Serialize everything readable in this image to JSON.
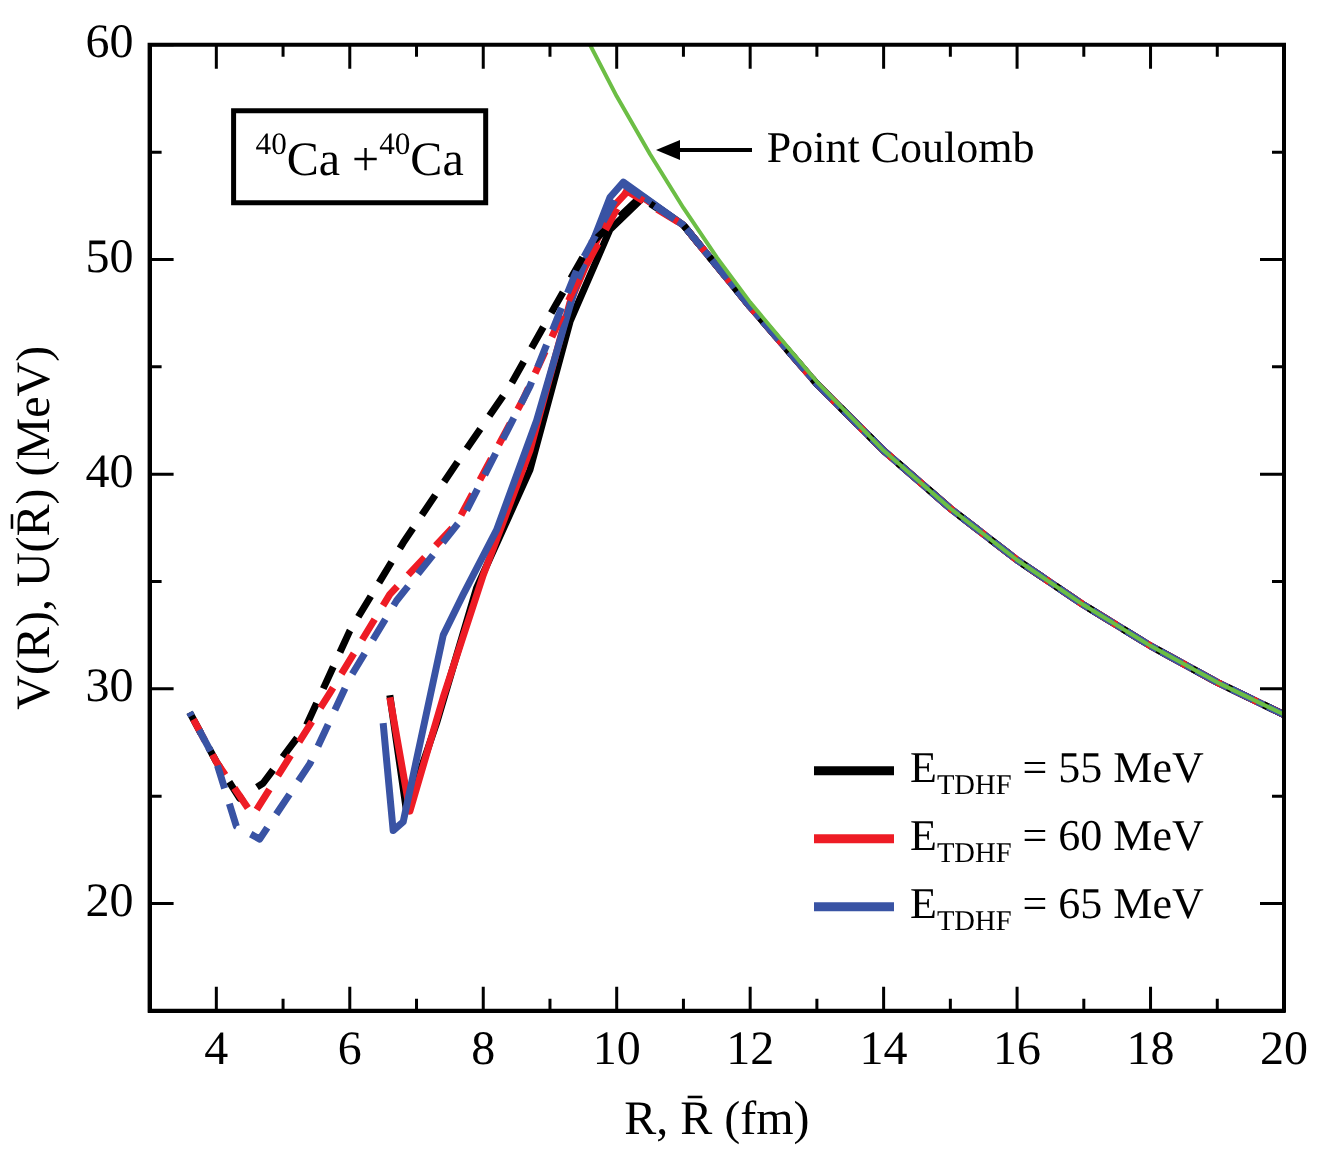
{
  "chart_data": {
    "type": "line",
    "xlabel": "R, R̄ (fm)",
    "ylabel": "V(R), U(R̄) (MeV)",
    "xlim": [
      3,
      20
    ],
    "ylim": [
      15,
      60
    ],
    "xticks": [
      4,
      {
        "value": 5,
        "label": null
      },
      6,
      {
        "value": 7,
        "label": null
      },
      8,
      {
        "value": 9,
        "label": null
      },
      10,
      {
        "value": 11,
        "label": null
      },
      12,
      {
        "value": 13,
        "label": null
      },
      14,
      {
        "value": 15,
        "label": null
      },
      16,
      {
        "value": 17,
        "label": null
      },
      18,
      {
        "value": 19,
        "label": null
      },
      20
    ],
    "yticks": [
      20,
      {
        "value": 25,
        "label": null
      },
      30,
      {
        "value": 35,
        "label": null
      },
      40,
      {
        "value": 45,
        "label": null
      },
      50,
      {
        "value": 55,
        "label": null
      },
      60
    ],
    "grid": false,
    "legend": "bottom right",
    "marker": "none",
    "annotations": [
      "$^{40}$Ca +$^{40}$Ca",
      {
        "text": "Point Coulomb",
        "x": 10.6,
        "y": 55.1
      }
    ],
    "series": [
      {
        "color": "#6cbe45",
        "line_style": "solid",
        "x": [
          9.6,
          10,
          10.5,
          11,
          11.5,
          12,
          13,
          14,
          15,
          16,
          17,
          18,
          19,
          20
        ],
        "values": [
          60,
          57.6,
          54.9,
          52.4,
          50.1,
          48,
          44.3,
          41.1,
          38.4,
          36,
          33.9,
          32,
          30.3,
          28.8
        ]
      },
      {
        "name": "E$_{TDHF}$ = 55 MeV",
        "color": "#000000",
        "line_style": "solid",
        "x": [
          6.6,
          6.85,
          7.3,
          7.9,
          8.7,
          9.3,
          9.9,
          10.4,
          11,
          11.5,
          12,
          13,
          14,
          15,
          16,
          17,
          18,
          19,
          20
        ],
        "values": [
          29.7,
          24.3,
          28.4,
          34.7,
          40.2,
          47.1,
          51.4,
          52.9,
          51.6,
          49.7,
          47.8,
          44.2,
          41.1,
          38.4,
          36,
          33.9,
          32,
          30.3,
          28.8
        ]
      },
      {
        "name": "E$_{TDHF}$ = 60 MeV",
        "color": "#ee1c25",
        "line_style": "solid",
        "x": [
          6.6,
          6.9,
          7.4,
          8,
          8.7,
          9.3,
          9.9,
          10.2,
          11,
          11.5,
          12,
          13,
          14,
          15,
          16,
          17,
          18,
          19,
          20
        ],
        "values": [
          29.6,
          24.3,
          29.6,
          35.3,
          41.1,
          48,
          52.3,
          53.3,
          51.6,
          49.7,
          47.8,
          44.2,
          41.1,
          38.4,
          36,
          33.9,
          32,
          30.3,
          28.8
        ]
      },
      {
        "name": "E$_{TDHF}$ = 65 MeV",
        "color": "#3953a4",
        "line_style": "solid",
        "x": [
          6.5,
          6.65,
          6.8,
          7.4,
          7.7,
          8.2,
          8.8,
          9.4,
          9.9,
          10.1,
          11,
          11.5,
          12,
          13,
          14,
          15,
          16,
          17,
          18,
          19,
          20
        ],
        "values": [
          28.4,
          23.4,
          23.8,
          32.5,
          34.4,
          37.4,
          42.5,
          48.9,
          52.9,
          53.6,
          51.6,
          49.7,
          47.8,
          44.2,
          41.1,
          38.4,
          36,
          33.9,
          32,
          30.3,
          28.8
        ]
      },
      {
        "color": "#000000",
        "line_style": "dashed",
        "x": [
          3.6,
          4,
          4.35,
          4.7,
          5.35,
          6,
          6.8,
          7.6,
          8.4,
          9,
          9.6,
          10.35,
          11,
          11.5,
          12,
          13,
          14,
          15,
          16,
          17,
          18,
          19,
          20
        ],
        "values": [
          28.9,
          26.6,
          24.9,
          25.6,
          28.3,
          32.7,
          36.8,
          40.5,
          44.1,
          47.4,
          50.7,
          52.9,
          51.6,
          49.7,
          47.8,
          44.2,
          41.1,
          38.4,
          36,
          33.9,
          32,
          30.3,
          28.8
        ]
      },
      {
        "color": "#ee1c25",
        "line_style": "dashed",
        "x": [
          3.6,
          4,
          4.55,
          5.7,
          6.6,
          7.6,
          8.6,
          9.4,
          10.15,
          11,
          11.5,
          12,
          13,
          14,
          15,
          16,
          17,
          18,
          19,
          20
        ],
        "values": [
          28.9,
          26.6,
          24.1,
          29.8,
          34.4,
          37.7,
          43.5,
          48.9,
          53.2,
          51.6,
          49.7,
          47.8,
          44.2,
          41.1,
          38.4,
          36,
          33.9,
          32,
          30.3,
          28.8
        ]
      },
      {
        "color": "#3953a4",
        "line_style": "dashed",
        "x": [
          3.6,
          4,
          4.3,
          4.65,
          5.4,
          6,
          6.7,
          7.7,
          8.7,
          9.4,
          10.1,
          11,
          11.5,
          12,
          13,
          14,
          15,
          16,
          17,
          18,
          19,
          20
        ],
        "values": [
          28.9,
          26.6,
          23.6,
          23,
          26.5,
          30.5,
          34.1,
          38,
          44.1,
          49.5,
          53.5,
          51.6,
          49.7,
          47.8,
          44.2,
          41.1,
          38.4,
          36,
          33.9,
          32,
          30.3,
          28.8
        ]
      }
    ]
  }
}
